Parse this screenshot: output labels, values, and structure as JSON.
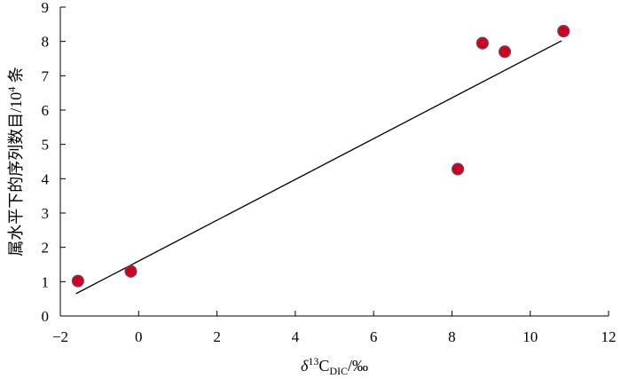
{
  "chart_data": {
    "type": "scatter",
    "title": "",
    "xlabel": {
      "prefix": "δ",
      "superscript": "13",
      "main": "C",
      "subscript": "DIC",
      "suffix": "/‰"
    },
    "ylabel": {
      "main": "属水平下的序列数目/10",
      "superscript": "4",
      "suffix": " 条"
    },
    "xlim": [
      -2,
      12
    ],
    "ylim": [
      0,
      9
    ],
    "xticks": [
      -2,
      0,
      2,
      4,
      6,
      8,
      10,
      12
    ],
    "xtick_labels": [
      "−2",
      "0",
      "2",
      "4",
      "6",
      "8",
      "10",
      "12"
    ],
    "yticks": [
      0,
      1,
      2,
      3,
      4,
      5,
      6,
      7,
      8,
      9
    ],
    "ytick_labels": [
      "0",
      "1",
      "2",
      "3",
      "4",
      "5",
      "6",
      "7",
      "8",
      "9"
    ],
    "points": [
      {
        "x": -1.55,
        "y": 1.02
      },
      {
        "x": -0.2,
        "y": 1.3
      },
      {
        "x": 8.15,
        "y": 4.28
      },
      {
        "x": 8.78,
        "y": 7.95
      },
      {
        "x": 9.35,
        "y": 7.7
      },
      {
        "x": 10.85,
        "y": 8.3
      }
    ],
    "trendline": {
      "x": [
        -1.6,
        10.8
      ],
      "y": [
        0.65,
        8.02
      ]
    },
    "marker_color": "#d0021b",
    "marker_edge": "#6b4a7a",
    "line_color": "#000000",
    "grid": false,
    "legend": "none"
  }
}
